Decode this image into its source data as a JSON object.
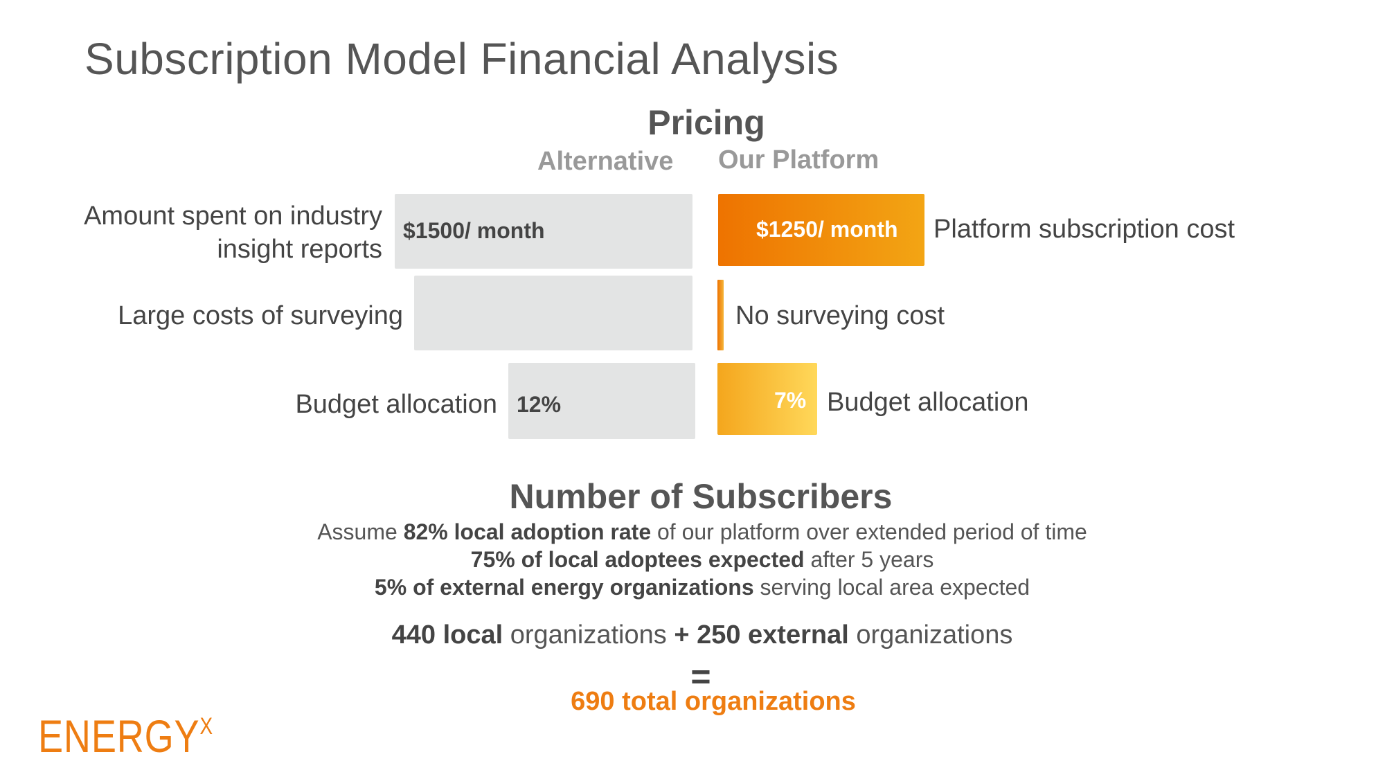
{
  "title": "Subscription Model Financial Analysis",
  "pricing": {
    "heading": "Pricing",
    "alternative_label": "Alternative",
    "platform_label": "Our Platform",
    "rows": [
      {
        "left_label_line1": "Amount spent on industry",
        "left_label_line2": "insight reports",
        "alternative_value": "$1500/ month",
        "platform_value": "$1250/ month",
        "right_label": "Platform subscription cost"
      },
      {
        "left_label": "Large costs of surveying",
        "right_label": "No surveying cost"
      },
      {
        "left_label": "Budget allocation",
        "alternative_value": "12%",
        "platform_value": "7%",
        "right_label": "Budget allocation"
      }
    ]
  },
  "subscribers": {
    "heading": "Number of Subscribers",
    "line1_prefix": "Assume ",
    "line1_bold": "82% local adoption rate",
    "line1_suffix": " of our platform over extended period of time",
    "line2_bold": "75% of local adoptees expected",
    "line2_suffix": " after 5 years",
    "line3_bold": "5% of external energy organizations",
    "line3_suffix": " serving local area expected",
    "sum_local_bold": "440 local",
    "sum_local_text": " organizations ",
    "sum_external_bold": "+ 250 external",
    "sum_external_text": " organizations",
    "equals": "=",
    "total": "690 total organizations"
  },
  "logo": {
    "text": "ENERGY",
    "superscript": "X"
  },
  "colors": {
    "accent": "#ee7d12",
    "bar_gray": "#e3e4e4",
    "text_dark": "#444444",
    "text_light": "#999999"
  }
}
